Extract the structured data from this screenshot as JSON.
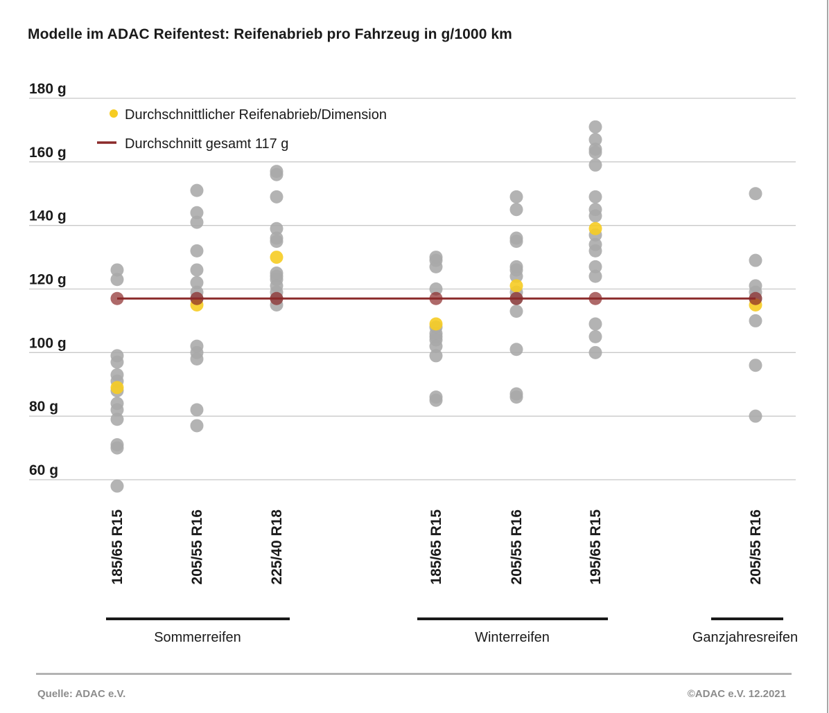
{
  "chart_data": {
    "type": "scatter",
    "title": "Modelle im ADAC Reifentest: Reifenabrieb pro Fahrzeug in g/1000 km",
    "ylim": [
      60,
      180
    ],
    "yticks": [
      60,
      80,
      100,
      120,
      140,
      160,
      180
    ],
    "ytick_labels": [
      "60 g",
      "80 g",
      "100 g",
      "120 g",
      "140 g",
      "160 g",
      "180 g"
    ],
    "grid": true,
    "legend": {
      "placement": "top-left",
      "average_label": "Durchschnittlicher Reifenabrieb/Dimension",
      "overall_label": "Durchschnitt gesamt 117 g"
    },
    "overall_average": 117,
    "colors": {
      "point": "#a9a9a9",
      "average": "#f6cc22",
      "overall": "#8b2a2a",
      "grid": "#c8c8c8"
    },
    "categories": [
      {
        "label": "185/65 R15",
        "group": "Sommerreifen",
        "average": 89,
        "values": [
          126,
          123,
          99,
          97,
          93,
          91,
          88,
          84,
          82,
          79,
          71,
          70,
          58
        ]
      },
      {
        "label": "205/55 R16",
        "group": "Sommerreifen",
        "average": 115,
        "values": [
          151,
          144,
          141,
          132,
          126,
          122,
          119,
          117,
          102,
          100,
          98,
          82,
          77
        ]
      },
      {
        "label": "225/40 R18",
        "group": "Sommerreifen",
        "average": 130,
        "values": [
          157,
          156,
          149,
          139,
          136,
          135,
          125,
          124,
          123,
          121,
          119,
          117,
          115
        ]
      },
      {
        "label": "185/65 R15",
        "group": "Winterreifen",
        "average": 109,
        "values": [
          130,
          129,
          127,
          120,
          108,
          106,
          105,
          104,
          102,
          99,
          86,
          85
        ]
      },
      {
        "label": "205/55 R16",
        "group": "Winterreifen",
        "average": 121,
        "values": [
          149,
          145,
          136,
          135,
          127,
          126,
          124,
          119,
          117,
          113,
          101,
          87,
          86
        ]
      },
      {
        "label": "195/65 R15",
        "group": "Winterreifen",
        "average": 139,
        "values": [
          171,
          167,
          164,
          163,
          159,
          149,
          145,
          143,
          137,
          134,
          132,
          127,
          124,
          109,
          105,
          100
        ]
      },
      {
        "label": "205/55 R16",
        "group": "Ganzjahresreifen",
        "average": 115,
        "values": [
          150,
          129,
          121,
          119,
          117,
          110,
          96,
          80
        ]
      }
    ],
    "groups": [
      "Sommerreifen",
      "Winterreifen",
      "Ganzjahresreifen"
    ]
  },
  "footer": {
    "source": "Quelle: ADAC e.V.",
    "copyright": "©ADAC e.V.  12.2021"
  }
}
